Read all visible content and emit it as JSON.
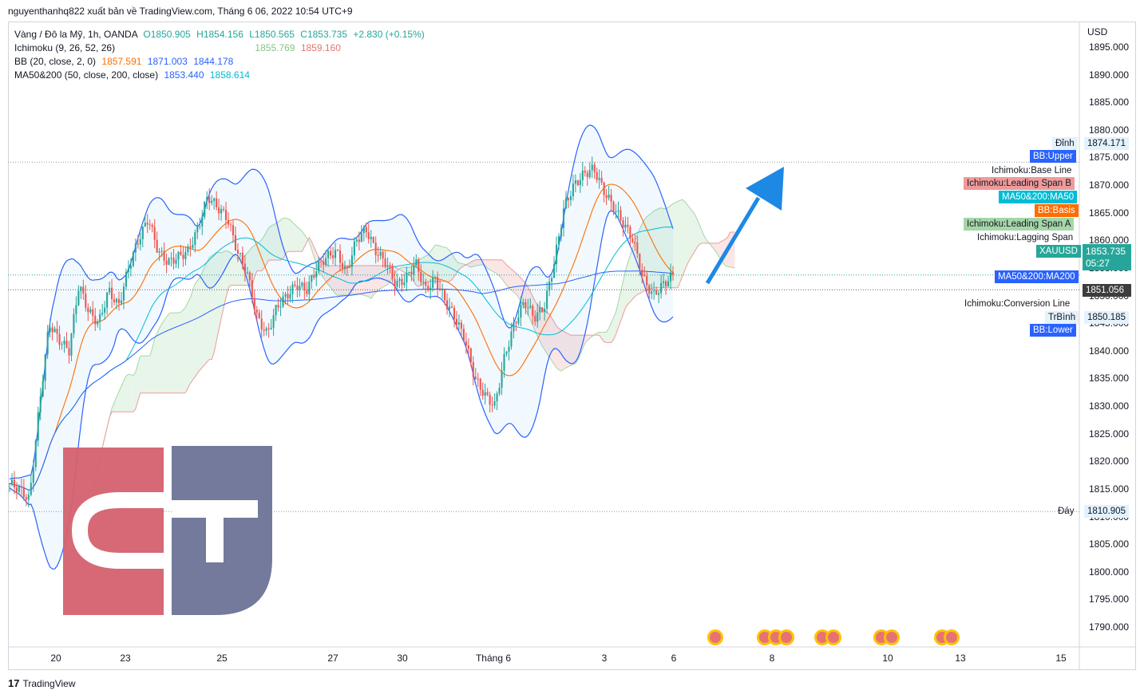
{
  "header": {
    "publisher": "nguyenthanhq822 xuất bản về TradingView.com, Tháng 6 06, 2022 10:54 UTC+9"
  },
  "legend": {
    "symbol": "Vàng / Đô la Mỹ, 1h, OANDA",
    "ohlc": {
      "o": "O1850.905",
      "h": "H1854.156",
      "l": "L1850.565",
      "c": "C1853.735",
      "chg": "+2.830 (+0.15%)"
    },
    "ichimoku": {
      "label": "Ichimoku (9, 26, 52, 26)",
      "v1": "1855.769",
      "v2": "1859.160"
    },
    "bb": {
      "label": "BB (20, close, 2, 0)",
      "v1": "1857.591",
      "v2": "1871.003",
      "v3": "1844.178"
    },
    "ma": {
      "label": "MA50&200 (50, close, 200, close)",
      "v1": "1853.440",
      "v2": "1858.614"
    }
  },
  "price_axis": {
    "currency": "USD"
  },
  "right_labels": {
    "dinh": "Đỉnh",
    "dinh_val": "1874.171",
    "bb_upper": "BB:Upper",
    "ich_base": "Ichimoku:Base Line",
    "ich_span_b": "Ichimoku:Leading Span B",
    "ma50": "MA50&200:MA50",
    "bb_basis": "BB:Basis",
    "ich_span_a": "Ichimoku:Leading Span A",
    "ich_lagging": "Ichimoku:Lagging Span",
    "xauusd": "XAUUSD",
    "last_price": "1853.735",
    "countdown": "05:27",
    "ma200": "MA50&200:MA200",
    "ma200_val": "1851.056",
    "ich_conv": "Ichimoku:Conversion Line",
    "trbinh": "TrBình",
    "trbinh_val": "1850.185",
    "bb_lower": "BB:Lower",
    "day": "Đáy",
    "day_val": "1810.905"
  },
  "footer": {
    "brand": "TradingView"
  },
  "colors": {
    "up": "#26a69a",
    "down": "#ef5350",
    "bb": "#2962ff",
    "basis": "#ff6d00",
    "ma50": "#00bcd4",
    "ma200": "#2962ff",
    "span_a": "#a5d6a7",
    "span_b": "#ef9a9a",
    "arrow": "#1e88e5",
    "logo_red": "#d4616e",
    "logo_blue": "#6b7397"
  },
  "chart_data": {
    "type": "candlestick",
    "title": "Vàng / Đô la Mỹ, 1h, OANDA",
    "ylabel": "USD",
    "ylim": [
      1786,
      1897
    ],
    "y_ticks": [
      "1895.000",
      "1890.000",
      "1885.000",
      "1880.000",
      "1875.000",
      "1870.000",
      "1865.000",
      "1860.000",
      "1855.000",
      "1850.000",
      "1845.000",
      "1840.000",
      "1835.000",
      "1830.000",
      "1825.000",
      "1820.000",
      "1815.000",
      "1810.000",
      "1805.000",
      "1800.000",
      "1795.000",
      "1790.000"
    ],
    "x_ticks": [
      "20",
      "23",
      "25",
      "27",
      "30",
      "Tháng 6",
      "3",
      "6",
      "8",
      "10",
      "13",
      "15"
    ],
    "close_path": [
      1816,
      1815,
      1813,
      1830,
      1845,
      1842,
      1840,
      1852,
      1847,
      1845,
      1851,
      1848,
      1855,
      1860,
      1864,
      1858,
      1856,
      1857,
      1858,
      1862,
      1868,
      1866,
      1864,
      1858,
      1854,
      1846,
      1843,
      1848,
      1850,
      1852,
      1851,
      1855,
      1857,
      1858,
      1854,
      1860,
      1862,
      1858,
      1856,
      1852,
      1853,
      1856,
      1851,
      1853,
      1849,
      1846,
      1842,
      1835,
      1832,
      1830,
      1839,
      1845,
      1849,
      1846,
      1848,
      1856,
      1866,
      1870,
      1872,
      1873,
      1869,
      1866,
      1863,
      1860,
      1853,
      1850,
      1852,
      1853.735
    ],
    "levels": {
      "high": 1874.171,
      "low": 1810.905,
      "last": 1853.735,
      "ma200": 1851.056,
      "avg": 1850.185
    }
  }
}
